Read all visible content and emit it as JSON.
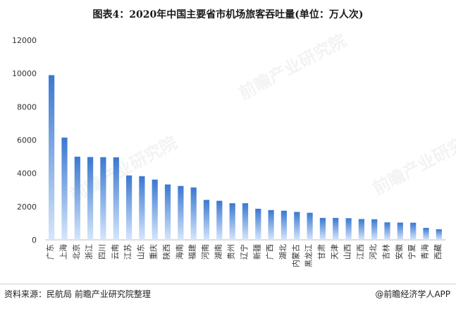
{
  "title": "图表4：2020年中国主要省市机场旅客吞吐量(单位：万人次)",
  "footer": {
    "source": "资料来源：民航局 前瞻产业研究院整理",
    "brand": "@前瞻经济学人APP"
  },
  "watermark": {
    "text": "前瞻产业研究院"
  },
  "colors": {
    "bar_top": "#3a78d0",
    "bar_bottom": "#d6e6fb",
    "axis": "#bfbfbf",
    "text": "#333333"
  },
  "chart_data": {
    "type": "bar",
    "title": "图表4：2020年中国主要省市机场旅客吞吐量(单位：万人次)",
    "categories": [
      "广东",
      "上海",
      "北京",
      "浙江",
      "四川",
      "云南",
      "江苏",
      "山东",
      "重庆",
      "陕西",
      "海南",
      "福建",
      "河南",
      "湖南",
      "贵州",
      "辽宁",
      "新疆",
      "广西",
      "湖北",
      "内蒙古",
      "黑龙江",
      "甘肃",
      "天津",
      "山西",
      "江西",
      "河北",
      "吉林",
      "安徽",
      "宁夏",
      "青海",
      "西藏"
    ],
    "values": [
      9900,
      6150,
      5000,
      4980,
      4970,
      4960,
      3870,
      3830,
      3620,
      3330,
      3240,
      3150,
      2400,
      2350,
      2200,
      2200,
      1870,
      1790,
      1750,
      1680,
      1630,
      1320,
      1320,
      1300,
      1250,
      1240,
      1050,
      1040,
      1030,
      720,
      640
    ],
    "ylim": [
      0,
      12000
    ],
    "yticks": [
      0,
      2000,
      4000,
      6000,
      8000,
      10000,
      12000
    ],
    "grid": false,
    "xlabel": "",
    "ylabel": ""
  }
}
